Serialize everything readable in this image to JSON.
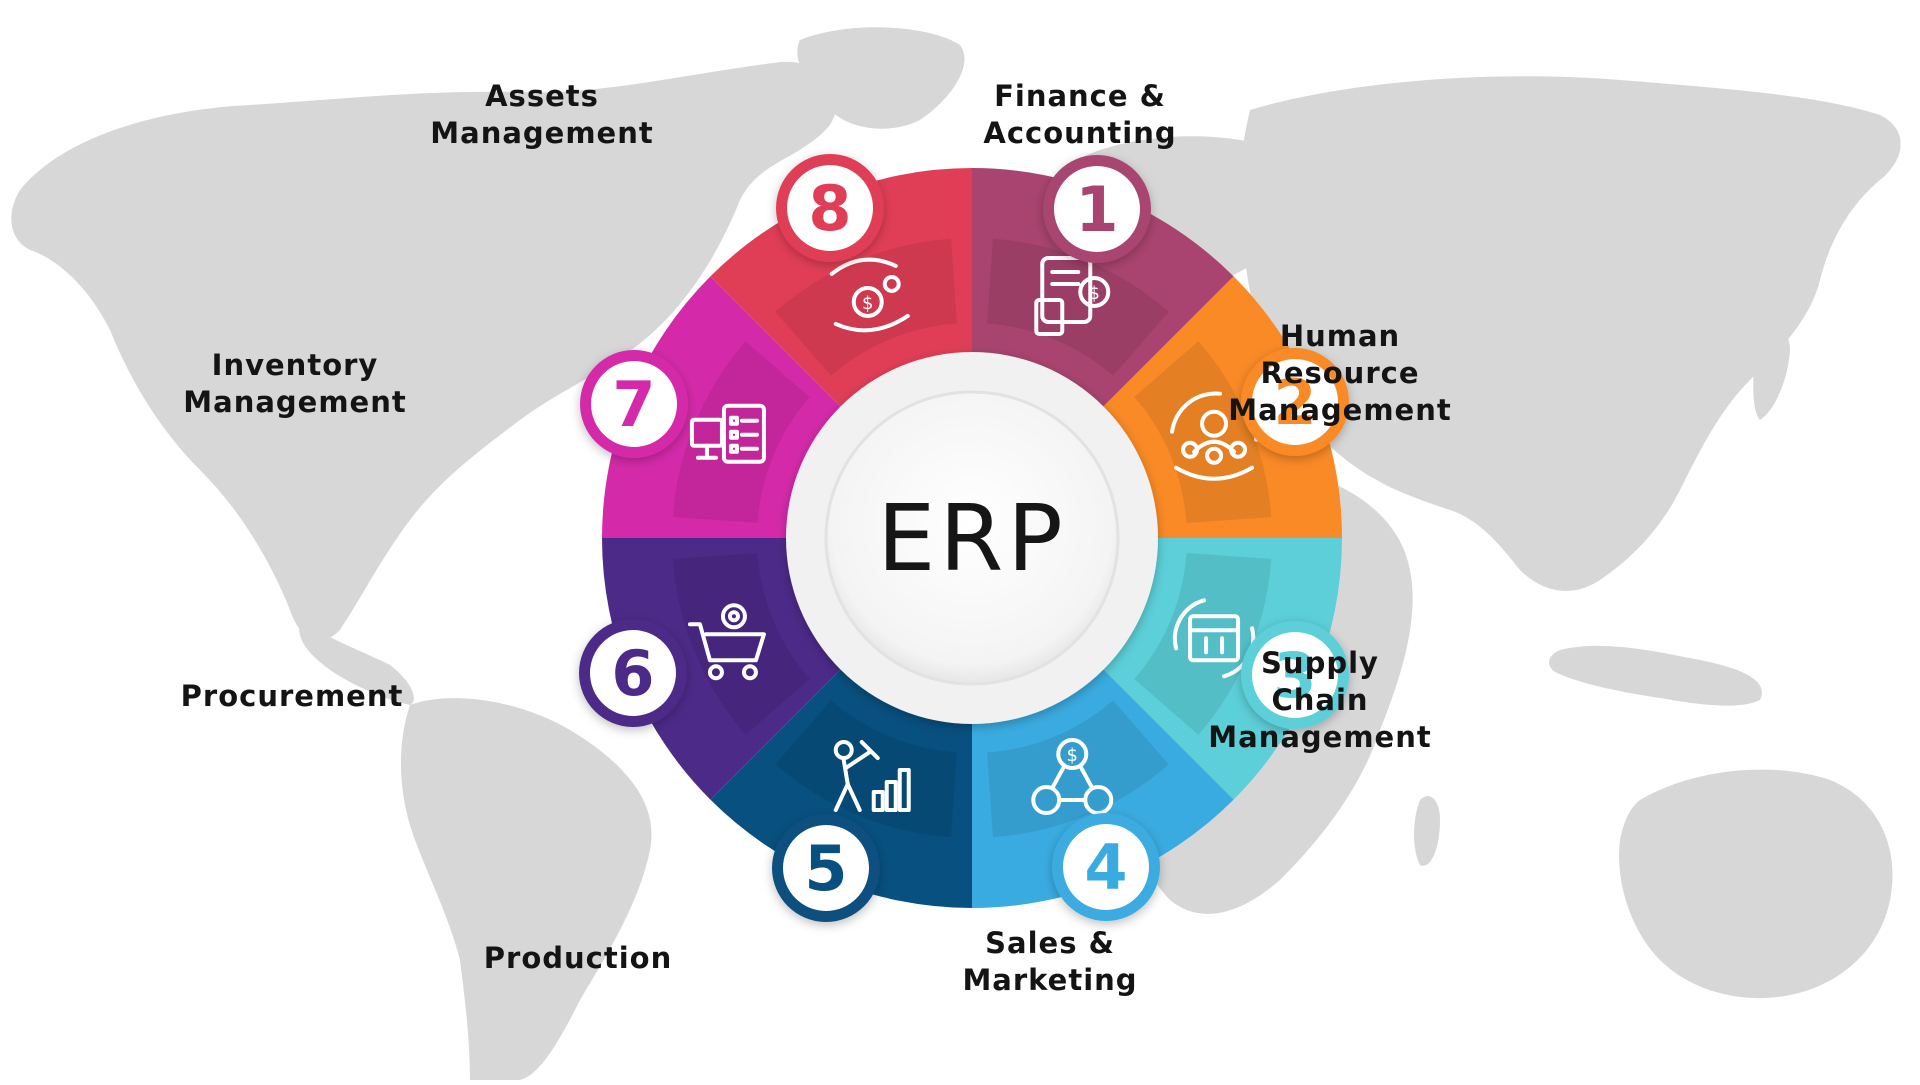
{
  "center": {
    "label": "ERP"
  },
  "modules": [
    {
      "number": "1",
      "name_lines": [
        "Finance &",
        "Accounting"
      ],
      "icon": "calculator-dollar-icon",
      "color": "#a8446f"
    },
    {
      "number": "2",
      "name_lines": [
        "Human",
        "Resource",
        "Management"
      ],
      "icon": "team-cycle-icon",
      "color": "#f98a26"
    },
    {
      "number": "3",
      "name_lines": [
        "Supply",
        "Chain",
        "Management"
      ],
      "icon": "box-cycle-icon",
      "color": "#5ccfd8"
    },
    {
      "number": "4",
      "name_lines": [
        "Sales &",
        "Marketing"
      ],
      "icon": "dollar-network-icon",
      "color": "#3aabe0"
    },
    {
      "number": "5",
      "name_lines": [
        "Production"
      ],
      "icon": "worker-chart-icon",
      "color": "#08507f"
    },
    {
      "number": "6",
      "name_lines": [
        "Procurement"
      ],
      "icon": "cart-gear-icon",
      "color": "#4c2a88"
    },
    {
      "number": "7",
      "name_lines": [
        "Inventory",
        "Management"
      ],
      "icon": "monitor-checklist-icon",
      "color": "#d42aa9"
    },
    {
      "number": "8",
      "name_lines": [
        "Assets",
        "Management"
      ],
      "icon": "hands-coins-icon",
      "color": "#e03e56"
    }
  ],
  "colors": {
    "map": "#d7d7d7",
    "text": "#141414",
    "center_text": "#161616",
    "center_ring": "#f1f1f1"
  }
}
